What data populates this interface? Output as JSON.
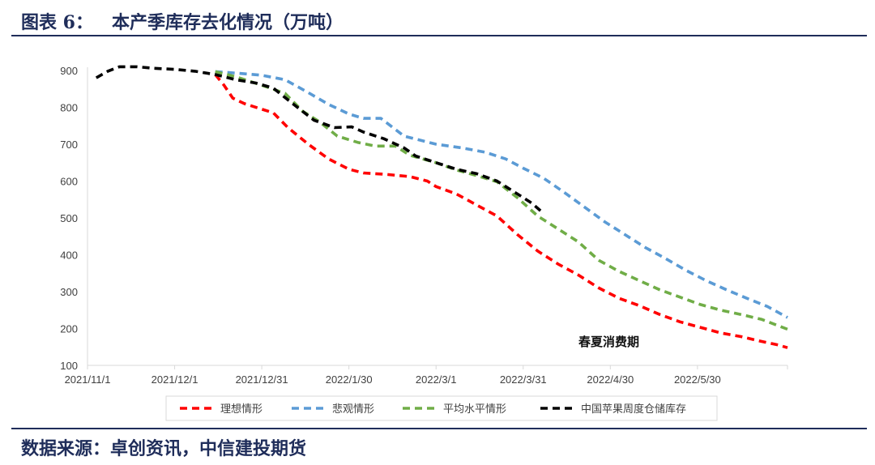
{
  "header": {
    "title": "图表 6：   本产季库存去化情况（万吨）"
  },
  "footer": {
    "source": "数据来源：卓创资讯，中信建投期货"
  },
  "chart_data": {
    "type": "line",
    "title": "",
    "xlabel": "",
    "ylabel": "",
    "ylim": [
      100,
      900
    ],
    "yticks": [
      100,
      200,
      300,
      400,
      500,
      600,
      700,
      800,
      900
    ],
    "xlim": [
      "2021-11-01",
      "2022-06-30"
    ],
    "xticks": [
      "2021/11/1",
      "2021/12/1",
      "2021/12/31",
      "2022/1/30",
      "2022/3/1",
      "2022/3/31",
      "2022/4/30",
      "2022/5/30"
    ],
    "grid": false,
    "legend_position": "bottom",
    "annotation": "春夏消费期",
    "series": [
      {
        "name": "理想情形",
        "color": "#ff0000",
        "points": [
          [
            "2021-12-15",
            889
          ],
          [
            "2021-12-18",
            860
          ],
          [
            "2021-12-21",
            825
          ],
          [
            "2021-12-25",
            810
          ],
          [
            "2021-12-31",
            795
          ],
          [
            "2022-01-04",
            785
          ],
          [
            "2022-01-09",
            745
          ],
          [
            "2022-01-16",
            700
          ],
          [
            "2022-01-23",
            660
          ],
          [
            "2022-01-30",
            632
          ],
          [
            "2022-02-04",
            622
          ],
          [
            "2022-02-12",
            618
          ],
          [
            "2022-02-20",
            612
          ],
          [
            "2022-02-26",
            600
          ],
          [
            "2022-03-01",
            585
          ],
          [
            "2022-03-08",
            565
          ],
          [
            "2022-03-15",
            535
          ],
          [
            "2022-03-22",
            505
          ],
          [
            "2022-03-29",
            455
          ],
          [
            "2022-04-05",
            410
          ],
          [
            "2022-04-12",
            375
          ],
          [
            "2022-04-19",
            345
          ],
          [
            "2022-04-26",
            310
          ],
          [
            "2022-05-03",
            282
          ],
          [
            "2022-05-10",
            262
          ],
          [
            "2022-05-17",
            238
          ],
          [
            "2022-05-24",
            218
          ],
          [
            "2022-05-31",
            203
          ],
          [
            "2022-06-07",
            188
          ],
          [
            "2022-06-14",
            178
          ],
          [
            "2022-06-21",
            165
          ],
          [
            "2022-06-27",
            155
          ],
          [
            "2022-06-30",
            148
          ]
        ]
      },
      {
        "name": "悲观情形",
        "color": "#5b9bd5",
        "points": [
          [
            "2021-12-15",
            897
          ],
          [
            "2021-12-22",
            893
          ],
          [
            "2021-12-31",
            887
          ],
          [
            "2022-01-08",
            875
          ],
          [
            "2022-01-16",
            840
          ],
          [
            "2022-01-23",
            808
          ],
          [
            "2022-01-30",
            782
          ],
          [
            "2022-02-04",
            770
          ],
          [
            "2022-02-10",
            770
          ],
          [
            "2022-02-18",
            722
          ],
          [
            "2022-02-25",
            708
          ],
          [
            "2022-03-01",
            700
          ],
          [
            "2022-03-10",
            690
          ],
          [
            "2022-03-18",
            678
          ],
          [
            "2022-03-25",
            660
          ],
          [
            "2022-03-31",
            635
          ],
          [
            "2022-04-07",
            608
          ],
          [
            "2022-04-14",
            570
          ],
          [
            "2022-04-21",
            530
          ],
          [
            "2022-04-28",
            490
          ],
          [
            "2022-05-05",
            455
          ],
          [
            "2022-05-12",
            420
          ],
          [
            "2022-05-19",
            390
          ],
          [
            "2022-05-26",
            358
          ],
          [
            "2022-06-02",
            330
          ],
          [
            "2022-06-09",
            305
          ],
          [
            "2022-06-16",
            282
          ],
          [
            "2022-06-23",
            260
          ],
          [
            "2022-06-30",
            230
          ]
        ]
      },
      {
        "name": "平均水平情形",
        "color": "#70ad47",
        "points": [
          [
            "2021-12-15",
            897
          ],
          [
            "2021-12-22",
            883
          ],
          [
            "2021-12-31",
            860
          ],
          [
            "2022-01-08",
            838
          ],
          [
            "2022-01-14",
            790
          ],
          [
            "2022-01-20",
            760
          ],
          [
            "2022-01-26",
            722
          ],
          [
            "2022-02-02",
            705
          ],
          [
            "2022-02-08",
            695
          ],
          [
            "2022-02-15",
            695
          ],
          [
            "2022-02-20",
            670
          ],
          [
            "2022-03-01",
            650
          ],
          [
            "2022-03-08",
            630
          ],
          [
            "2022-03-15",
            615
          ],
          [
            "2022-03-22",
            598
          ],
          [
            "2022-03-29",
            555
          ],
          [
            "2022-04-05",
            505
          ],
          [
            "2022-04-12",
            470
          ],
          [
            "2022-04-19",
            435
          ],
          [
            "2022-04-26",
            385
          ],
          [
            "2022-05-03",
            355
          ],
          [
            "2022-05-10",
            330
          ],
          [
            "2022-05-17",
            305
          ],
          [
            "2022-05-24",
            285
          ],
          [
            "2022-05-31",
            265
          ],
          [
            "2022-06-07",
            250
          ],
          [
            "2022-06-14",
            238
          ],
          [
            "2022-06-21",
            225
          ],
          [
            "2022-06-30",
            198
          ]
        ]
      },
      {
        "name": "中国苹果周度仓储库存",
        "color": "#000000",
        "points": [
          [
            "2021-11-04",
            880
          ],
          [
            "2021-11-08",
            898
          ],
          [
            "2021-11-12",
            910
          ],
          [
            "2021-11-18",
            910
          ],
          [
            "2021-11-24",
            906
          ],
          [
            "2021-12-01",
            903
          ],
          [
            "2021-12-08",
            898
          ],
          [
            "2021-12-15",
            889
          ],
          [
            "2021-12-22",
            875
          ],
          [
            "2021-12-29",
            866
          ],
          [
            "2022-01-04",
            852
          ],
          [
            "2022-01-11",
            808
          ],
          [
            "2022-01-18",
            765
          ],
          [
            "2022-01-25",
            745
          ],
          [
            "2022-01-31",
            747
          ],
          [
            "2022-02-04",
            733
          ],
          [
            "2022-02-11",
            715
          ],
          [
            "2022-02-18",
            690
          ],
          [
            "2022-02-22",
            668
          ],
          [
            "2022-03-01",
            650
          ],
          [
            "2022-03-08",
            632
          ],
          [
            "2022-03-15",
            620
          ],
          [
            "2022-03-22",
            600
          ],
          [
            "2022-03-29",
            565
          ],
          [
            "2022-04-03",
            540
          ],
          [
            "2022-04-07",
            512
          ]
        ]
      }
    ]
  }
}
